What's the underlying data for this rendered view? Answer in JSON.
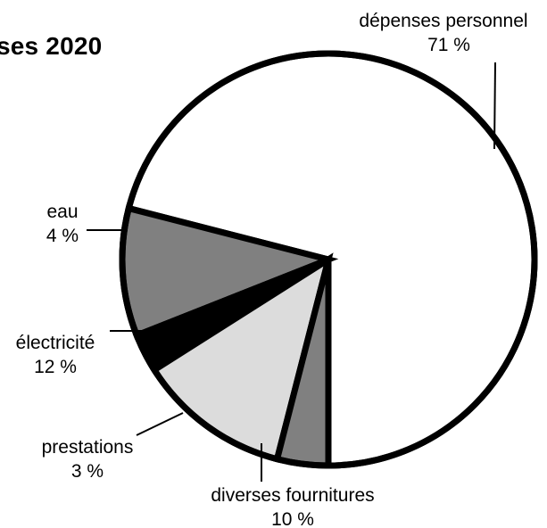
{
  "chart_data": {
    "type": "pie",
    "title": "ses 2020",
    "slices": [
      {
        "label": "dépenses personnel",
        "value": 71,
        "value_label": "71 %",
        "color": "#ffffff"
      },
      {
        "label": "diverses fournitures",
        "value": 10,
        "value_label": "10 %",
        "color": "#808080"
      },
      {
        "label": "prestations",
        "value": 3,
        "value_label": "3 %",
        "color": "#000000"
      },
      {
        "label": "électricité",
        "value": 12,
        "value_label": "12 %",
        "color": "#dcdcdc"
      },
      {
        "label": "eau",
        "value": 4,
        "value_label": "4 %",
        "color": "#808080"
      }
    ],
    "start_angle": "bottom (6 o'clock), counter-clockwise",
    "legend": "none",
    "outline_color": "#000000"
  }
}
